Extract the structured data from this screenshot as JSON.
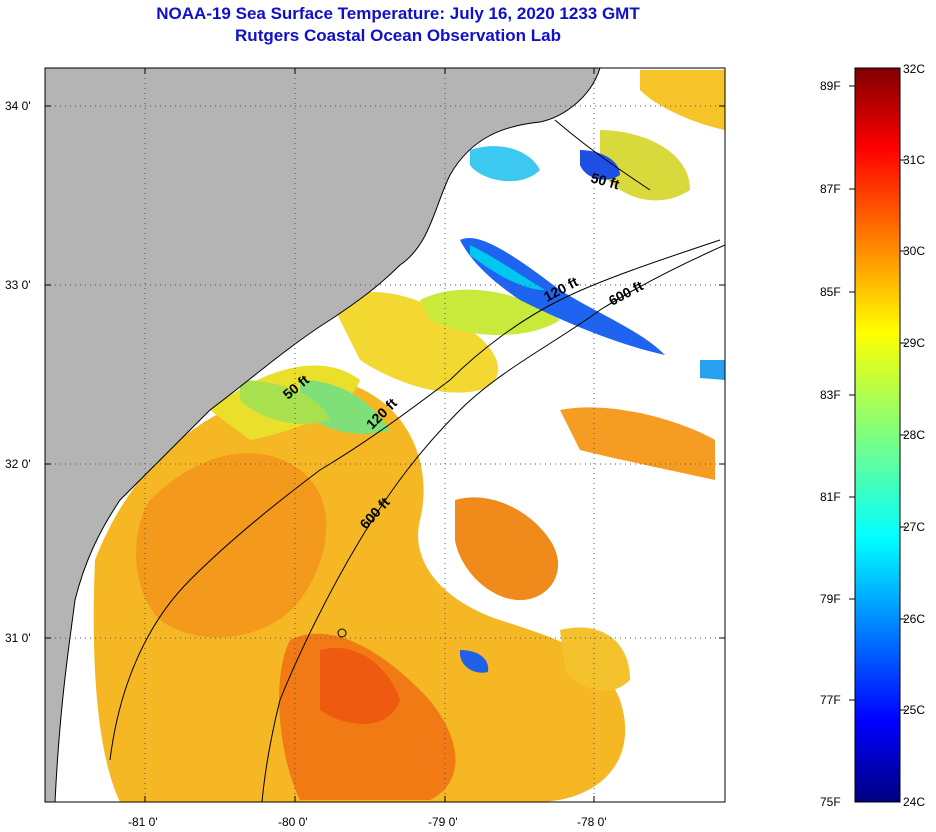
{
  "header": {
    "title": "NOAA-19 Sea Surface Temperature:  July 16, 2020 1233 GMT",
    "subtitle": "Rutgers Coastal Ocean Observation Lab"
  },
  "map": {
    "lat_ticks": [
      "34 0'",
      "33 0'",
      "32 0'",
      "31 0'"
    ],
    "lon_ticks": [
      "-81 0'",
      "-80 0'",
      "-79 0'",
      "-78 0'"
    ],
    "contours": [
      {
        "label": "50 ft"
      },
      {
        "label": "120 ft"
      },
      {
        "label": "600 ft"
      },
      {
        "label": "50 ft"
      },
      {
        "label": "120 ft"
      },
      {
        "label": "600 ft"
      }
    ],
    "colors": {
      "land": "#b4b4b4",
      "ocean_nodata": "#ffffff",
      "grid": "#555555"
    }
  },
  "colorbar": {
    "fahrenheit": [
      "89F",
      "87F",
      "85F",
      "83F",
      "81F",
      "79F",
      "77F",
      "75F"
    ],
    "celsius": [
      "32C",
      "31C",
      "30C",
      "29C",
      "28C",
      "27C",
      "26C",
      "25C",
      "24C"
    ],
    "range_c": [
      24,
      32
    ],
    "colormap": "jet"
  }
}
